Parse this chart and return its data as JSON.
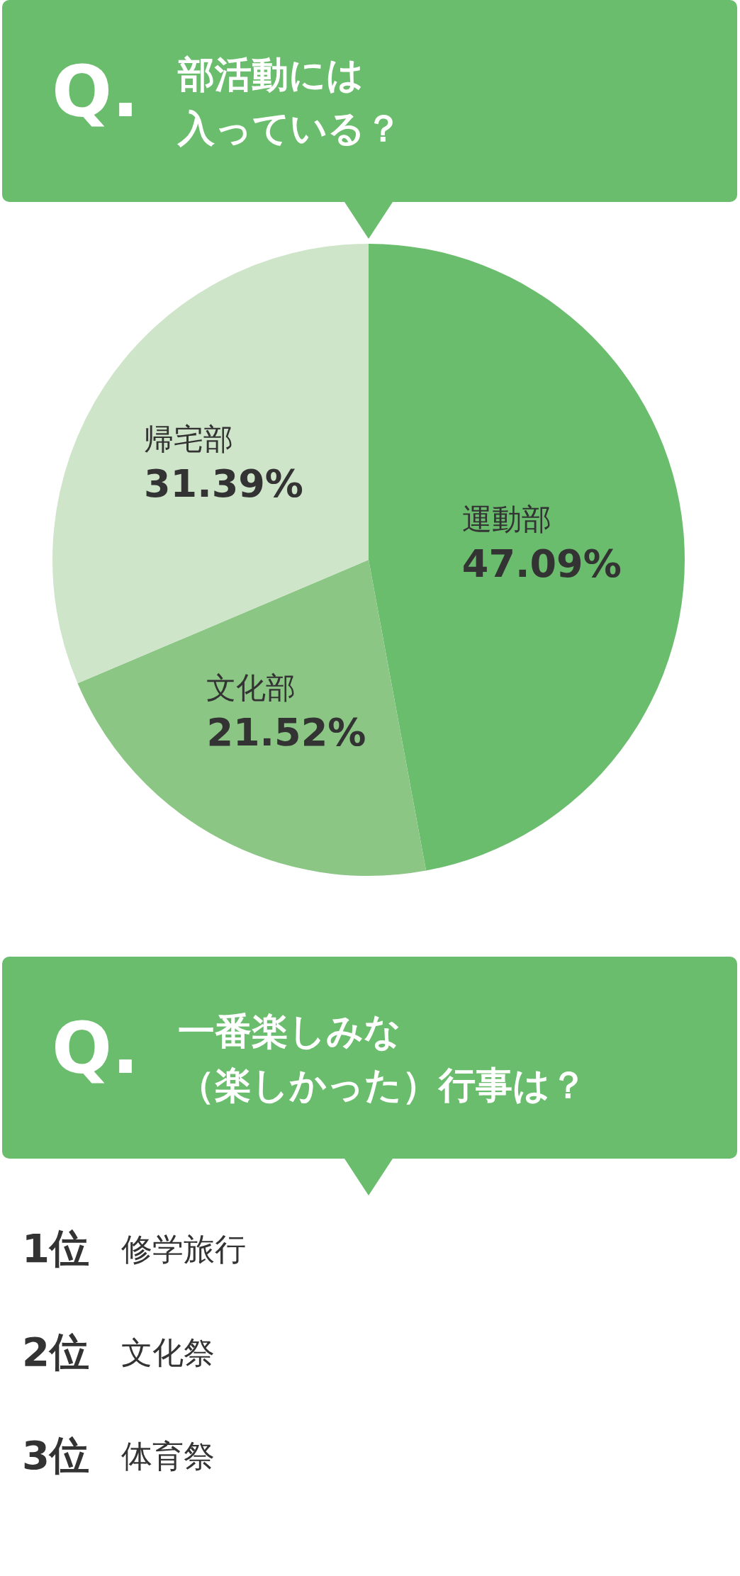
{
  "chart_data": [
    {
      "type": "pie",
      "title": "部活動には",
      "subtitle": "入っている？",
      "annotations": [
        "Q."
      ],
      "categories": [
        "運動部",
        "文化部",
        "帰宅部"
      ],
      "values": [
        47.09,
        21.52,
        31.39
      ],
      "value_labels": [
        "47.09%",
        "21.52%",
        "31.39%"
      ],
      "colors": [
        "#6bbd6e",
        "#8bc685",
        "#cfe5c9"
      ],
      "data_labels": true,
      "legend": false
    },
    {
      "type": "other",
      "title": "一番楽しみな",
      "subtitle": "（楽しかった）行事は？",
      "annotations": [
        "Q."
      ],
      "categories": [
        "修学旅行",
        "文化祭",
        "体育祭"
      ],
      "values": [
        1,
        2,
        3
      ],
      "value_labels": [
        "1位",
        "2位",
        "3位"
      ]
    }
  ]
}
